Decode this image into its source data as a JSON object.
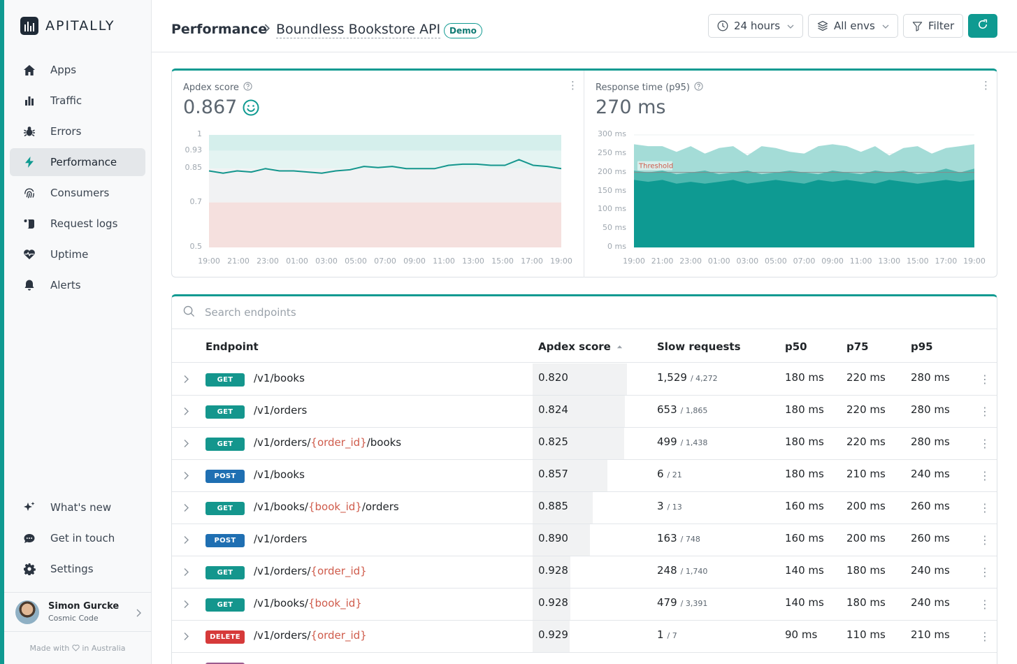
{
  "app": {
    "name": "APITALLY"
  },
  "nav": {
    "items": [
      {
        "label": "Apps",
        "icon": "home-icon"
      },
      {
        "label": "Traffic",
        "icon": "bar-chart-icon"
      },
      {
        "label": "Errors",
        "icon": "bug-icon"
      },
      {
        "label": "Performance",
        "icon": "lightning-icon",
        "active": true
      },
      {
        "label": "Consumers",
        "icon": "fingerprint-icon"
      },
      {
        "label": "Request logs",
        "icon": "scroll-icon"
      },
      {
        "label": "Uptime",
        "icon": "heartbeat-icon"
      },
      {
        "label": "Alerts",
        "icon": "bell-icon"
      }
    ],
    "bottom_items": [
      {
        "label": "What's new",
        "icon": "sparkles-icon"
      },
      {
        "label": "Get in touch",
        "icon": "chat-icon"
      },
      {
        "label": "Settings",
        "icon": "gear-icon"
      }
    ]
  },
  "user": {
    "name": "Simon Gurcke",
    "org": "Cosmic Code"
  },
  "footer": {
    "made_with_prefix": "Made with",
    "made_with_suffix": "in Australia"
  },
  "header": {
    "breadcrumb_section": "Performance",
    "breadcrumb_app": "Boundless Bookstore API",
    "badge": "Demo",
    "time_range": "24 hours",
    "env": "All envs",
    "filter": "Filter"
  },
  "apdex_card": {
    "title": "Apdex score",
    "value": "0.867",
    "y_ticks": [
      "1",
      "0.93",
      "0.85",
      "0.7",
      "0.5"
    ],
    "x_ticks": [
      "19:00",
      "21:00",
      "23:00",
      "01:00",
      "03:00",
      "05:00",
      "07:00",
      "09:00",
      "11:00",
      "13:00",
      "15:00",
      "17:00",
      "19:00"
    ],
    "values": [
      0.84,
      0.83,
      0.84,
      0.835,
      0.85,
      0.84,
      0.84,
      0.835,
      0.83,
      0.84,
      0.845,
      0.86,
      0.855,
      0.86,
      0.85,
      0.85,
      0.85,
      0.865,
      0.87,
      0.87,
      0.865,
      0.865,
      0.89,
      0.865,
      0.86,
      0.85
    ],
    "bands": {
      "good_min": 0.93,
      "ok_min": 0.85,
      "poor_min": 0.7
    },
    "colors": {
      "line": "#14968d",
      "good_band": "#d5efec",
      "ok_band": "#e4f4f2",
      "mid_band": "#f1f2f3",
      "poor_band": "#f5e0de"
    }
  },
  "response_card": {
    "title": "Response time (p95)",
    "value": "270 ms",
    "threshold_label": "Threshold",
    "threshold_ms": 200,
    "y_ticks": [
      "300 ms",
      "250 ms",
      "200 ms",
      "150 ms",
      "100 ms",
      "50 ms",
      "0 ms"
    ],
    "x_ticks": [
      "19:00",
      "21:00",
      "23:00",
      "01:00",
      "03:00",
      "05:00",
      "07:00",
      "09:00",
      "11:00",
      "13:00",
      "15:00",
      "17:00",
      "19:00"
    ],
    "p50": [
      180,
      175,
      180,
      170,
      175,
      170,
      175,
      180,
      170,
      175,
      180,
      175,
      170,
      180,
      175,
      180,
      175,
      170,
      180,
      175,
      170,
      175,
      180,
      175,
      180
    ],
    "p75": [
      205,
      200,
      205,
      195,
      200,
      205,
      195,
      200,
      205,
      195,
      200,
      205,
      200,
      195,
      205,
      200,
      195,
      205,
      200,
      205,
      195,
      200,
      210,
      200,
      210
    ],
    "p95": [
      275,
      270,
      270,
      255,
      270,
      250,
      265,
      270,
      245,
      270,
      265,
      255,
      250,
      270,
      275,
      270,
      255,
      270,
      245,
      265,
      270,
      250,
      265,
      270,
      275
    ],
    "colors": {
      "p50": "#0e9a92",
      "p75": "#4fb8b0",
      "p95": "#a4dcd7",
      "threshold": "#8a8a8a"
    }
  },
  "table": {
    "search_placeholder": "Search endpoints",
    "headers": {
      "endpoint": "Endpoint",
      "apdex": "Apdex score",
      "slow": "Slow requests",
      "p50": "p50",
      "p75": "p75",
      "p95": "p95"
    },
    "rows": [
      {
        "method": "GET",
        "path": [
          "/v1/books"
        ],
        "apdex": "0.820",
        "apdex_num": 0.82,
        "slow": "1,529",
        "total": "/ 4,272",
        "p50": "180 ms",
        "p75": "220 ms",
        "p95": "280 ms"
      },
      {
        "method": "GET",
        "path": [
          "/v1/orders"
        ],
        "apdex": "0.824",
        "apdex_num": 0.824,
        "slow": "653",
        "total": "/ 1,865",
        "p50": "180 ms",
        "p75": "220 ms",
        "p95": "280 ms"
      },
      {
        "method": "GET",
        "path": [
          "/v1/orders/",
          "{order_id}",
          "/books"
        ],
        "apdex": "0.825",
        "apdex_num": 0.825,
        "slow": "499",
        "total": "/ 1,438",
        "p50": "180 ms",
        "p75": "220 ms",
        "p95": "280 ms"
      },
      {
        "method": "POST",
        "path": [
          "/v1/books"
        ],
        "apdex": "0.857",
        "apdex_num": 0.857,
        "slow": "6",
        "total": "/ 21",
        "p50": "180 ms",
        "p75": "210 ms",
        "p95": "240 ms"
      },
      {
        "method": "GET",
        "path": [
          "/v1/books/",
          "{book_id}",
          "/orders"
        ],
        "apdex": "0.885",
        "apdex_num": 0.885,
        "slow": "3",
        "total": "/ 13",
        "p50": "160 ms",
        "p75": "200 ms",
        "p95": "260 ms"
      },
      {
        "method": "POST",
        "path": [
          "/v1/orders"
        ],
        "apdex": "0.890",
        "apdex_num": 0.89,
        "slow": "163",
        "total": "/ 748",
        "p50": "160 ms",
        "p75": "200 ms",
        "p95": "260 ms"
      },
      {
        "method": "GET",
        "path": [
          "/v1/orders/",
          "{order_id}"
        ],
        "apdex": "0.928",
        "apdex_num": 0.928,
        "slow": "248",
        "total": "/ 1,740",
        "p50": "140 ms",
        "p75": "180 ms",
        "p95": "240 ms"
      },
      {
        "method": "GET",
        "path": [
          "/v1/books/",
          "{book_id}"
        ],
        "apdex": "0.928",
        "apdex_num": 0.928,
        "slow": "479",
        "total": "/ 3,391",
        "p50": "140 ms",
        "p75": "180 ms",
        "p95": "240 ms"
      },
      {
        "method": "DELETE",
        "path": [
          "/v1/orders/",
          "{order_id}"
        ],
        "apdex": "0.929",
        "apdex_num": 0.929,
        "slow": "1",
        "total": "/ 7",
        "p50": "90 ms",
        "p75": "110 ms",
        "p95": "210 ms"
      }
    ],
    "method_colors": {
      "GET": "#14968d",
      "POST": "#1f6fb2",
      "DELETE": "#d63a3a",
      "PUT": "#9a5b8e"
    }
  }
}
